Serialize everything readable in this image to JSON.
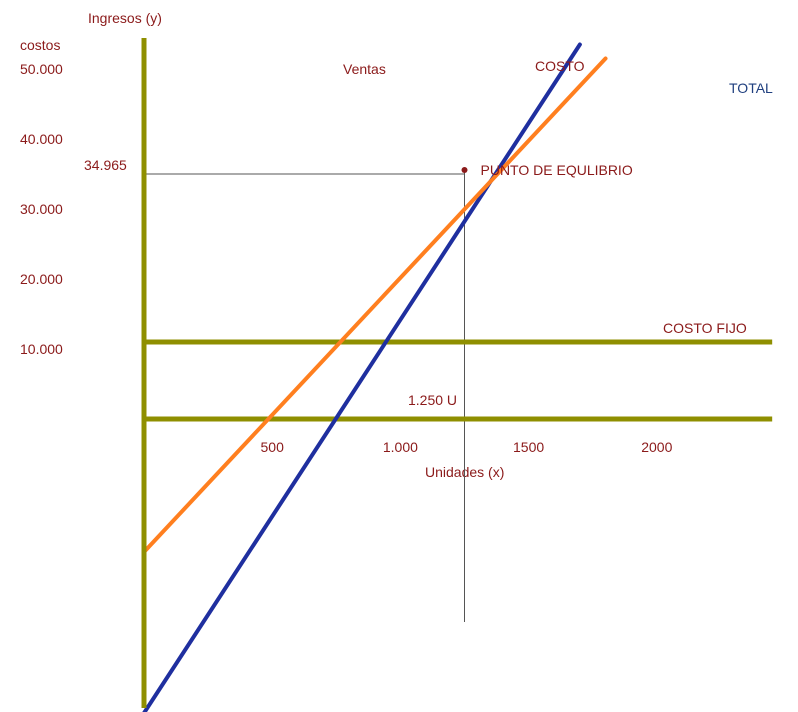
{
  "chart_data": {
    "type": "line",
    "ylabel_line1": "Ingresos (y)",
    "ylabel_line2": "costos",
    "xlabel": "Unidades (x)",
    "x_ticks": [
      {
        "value": 500,
        "label": "500"
      },
      {
        "value": 1000,
        "label": "1.000"
      },
      {
        "value": 1500,
        "label": "1500"
      },
      {
        "value": 2000,
        "label": "2000"
      }
    ],
    "y_ticks": [
      {
        "value": 10000,
        "label": "10.000"
      },
      {
        "value": 20000,
        "label": "20.000"
      },
      {
        "value": 30000,
        "label": "30.000"
      },
      {
        "value": 40000,
        "label": "40.000"
      },
      {
        "value": 50000,
        "label": "50.000"
      }
    ],
    "xlim": [
      0,
      2450
    ],
    "ylim": [
      -42000,
      55000
    ],
    "series": [
      {
        "name": "Ventas",
        "color": "#1f2f9f",
        "points": [
          [
            0,
            -42000
          ],
          [
            1700,
            53500
          ]
        ]
      },
      {
        "name": "COSTO TOTAL",
        "color": "#ff7f1f",
        "points": [
          [
            0,
            -19000
          ],
          [
            1800,
            51500
          ]
        ]
      }
    ],
    "fixed_cost_lines": [
      {
        "label": "COSTO FIJO",
        "y": 11000,
        "x_end": 2450
      },
      {
        "label": "",
        "y": 0,
        "x_end": 2450
      }
    ],
    "guide": {
      "y_label": "34.965",
      "y_value": 35000,
      "x_value": 1250,
      "x_label": "1.250 U",
      "y_bottom": -29000
    },
    "annotations": [
      {
        "text": "PUNTO DE EQULIBRIO",
        "x": 1250,
        "y": 35000
      },
      {
        "text": "Ventas"
      },
      {
        "text": "COSTO"
      },
      {
        "text": "TOTAL"
      }
    ],
    "colors": {
      "axis": "#8f8f00",
      "sales_line": "#1f2f9f",
      "cost_line": "#ff7f1f",
      "text": "#8b1a1a",
      "total_label": "#1f3f7f",
      "guide_line": "#555555"
    }
  }
}
